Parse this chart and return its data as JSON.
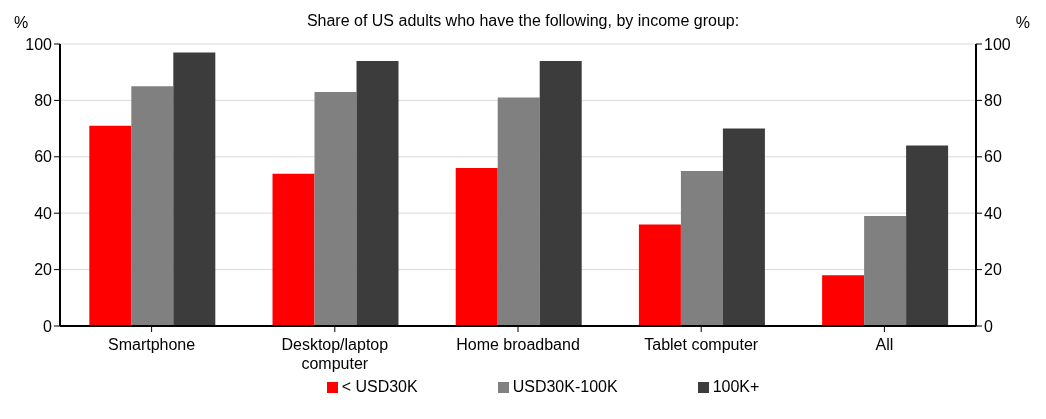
{
  "chart_data": {
    "type": "bar",
    "title": "Share of US adults who have the following, by income group:",
    "ylabel": "%",
    "y2label": "%",
    "categories": [
      "Smartphone",
      "Desktop/laptop computer",
      "Home broadband",
      "Tablet computer",
      "All"
    ],
    "series": [
      {
        "name": "< USD30K",
        "color": "#ff0000",
        "values": [
          71,
          54,
          56,
          36,
          18
        ]
      },
      {
        "name": "USD30K-100K",
        "color": "#808080",
        "values": [
          85,
          83,
          81,
          55,
          39
        ]
      },
      {
        "name": "100K+",
        "color": "#3c3c3c",
        "values": [
          97,
          94,
          94,
          70,
          64
        ]
      }
    ],
    "ylim": [
      0,
      100
    ],
    "yticks": [
      0,
      20,
      40,
      60,
      80,
      100
    ],
    "y2lim": [
      0,
      100
    ],
    "y2ticks": [
      0,
      20,
      40,
      60,
      80,
      100
    ],
    "grid": "y",
    "legend": "bottom"
  }
}
